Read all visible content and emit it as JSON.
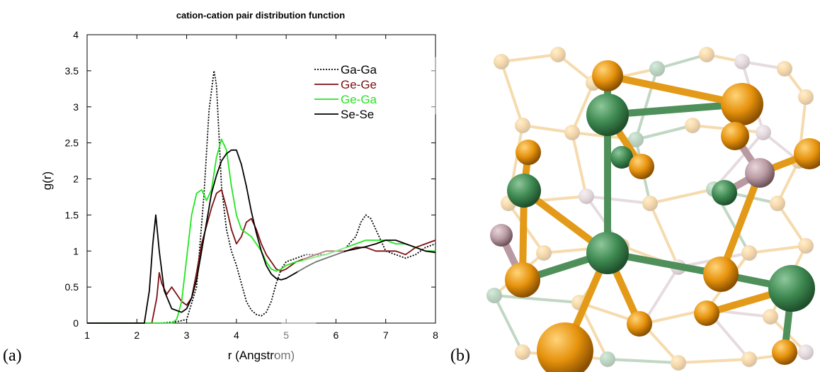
{
  "chart_data": {
    "type": "line",
    "title": "cation-cation pair distribution function",
    "xlabel": "r (Angstrom)",
    "ylabel": "g(r)",
    "xlim": [
      1,
      8
    ],
    "ylim": [
      0,
      4
    ],
    "xticks": [
      1,
      2,
      3,
      4,
      5,
      6,
      7,
      8
    ],
    "yticks": [
      0,
      0.5,
      1,
      1.5,
      2,
      2.5,
      3,
      3.5,
      4
    ],
    "ytick_labels": [
      "0",
      "0.5",
      "1",
      "1.5",
      "2",
      "2.5",
      "3",
      "3.5",
      "4"
    ],
    "grid": false,
    "legend_position": "top-right",
    "series": [
      {
        "name": "Ga-Ga",
        "color": "#000000",
        "style": "dotted",
        "x": [
          1.0,
          2.5,
          2.8,
          3.0,
          3.2,
          3.35,
          3.45,
          3.55,
          3.6,
          3.65,
          3.7,
          3.8,
          3.9,
          4.0,
          4.1,
          4.2,
          4.3,
          4.4,
          4.5,
          4.6,
          4.7,
          4.8,
          4.9,
          5.0,
          5.2,
          5.4,
          5.6,
          5.8,
          6.0,
          6.2,
          6.4,
          6.5,
          6.6,
          6.7,
          6.8,
          6.9,
          7.0,
          7.2,
          7.4,
          7.6,
          7.8,
          8.0
        ],
        "y": [
          0.0,
          0.0,
          0.02,
          0.05,
          0.5,
          1.8,
          2.95,
          3.5,
          3.3,
          2.6,
          1.9,
          1.3,
          1.0,
          0.8,
          0.55,
          0.3,
          0.18,
          0.12,
          0.1,
          0.15,
          0.3,
          0.55,
          0.75,
          0.85,
          0.9,
          0.95,
          0.95,
          0.95,
          1.0,
          1.05,
          1.2,
          1.4,
          1.5,
          1.45,
          1.3,
          1.15,
          1.0,
          0.95,
          0.9,
          0.95,
          1.05,
          1.1
        ]
      },
      {
        "name": "Ge-Ge",
        "color": "#7b0f12",
        "style": "solid",
        "x": [
          1.0,
          2.3,
          2.4,
          2.45,
          2.5,
          2.6,
          2.7,
          2.8,
          2.9,
          3.0,
          3.1,
          3.2,
          3.3,
          3.4,
          3.5,
          3.6,
          3.7,
          3.8,
          3.9,
          4.0,
          4.1,
          4.2,
          4.3,
          4.4,
          4.5,
          4.6,
          4.7,
          4.8,
          4.9,
          5.0,
          5.2,
          5.4,
          5.6,
          5.8,
          6.0,
          6.2,
          6.4,
          6.6,
          6.8,
          7.0,
          7.2,
          7.4,
          7.6,
          7.8,
          8.0
        ],
        "y": [
          0.0,
          0.0,
          0.35,
          0.7,
          0.55,
          0.4,
          0.5,
          0.4,
          0.3,
          0.25,
          0.35,
          0.7,
          1.1,
          1.35,
          1.6,
          1.8,
          1.85,
          1.6,
          1.3,
          1.1,
          1.2,
          1.4,
          1.45,
          1.3,
          1.1,
          0.95,
          0.85,
          0.75,
          0.72,
          0.75,
          0.85,
          0.9,
          0.95,
          1.0,
          1.0,
          1.0,
          1.05,
          1.05,
          1.0,
          1.0,
          1.0,
          0.95,
          1.05,
          1.1,
          1.15
        ]
      },
      {
        "name": "Ge-Ga",
        "color": "#22e61e",
        "style": "solid",
        "x": [
          1.0,
          2.7,
          2.8,
          2.9,
          3.0,
          3.1,
          3.2,
          3.3,
          3.4,
          3.5,
          3.6,
          3.7,
          3.8,
          3.9,
          4.0,
          4.1,
          4.2,
          4.3,
          4.4,
          4.5,
          4.6,
          4.7,
          4.8,
          4.9,
          5.0,
          5.2,
          5.4,
          5.6,
          5.8,
          6.0,
          6.2,
          6.4,
          6.6,
          6.8,
          7.0,
          7.2,
          7.4,
          7.6,
          7.8,
          8.0
        ],
        "y": [
          0.0,
          0.0,
          0.05,
          0.3,
          0.9,
          1.5,
          1.8,
          1.85,
          1.7,
          1.85,
          2.3,
          2.55,
          2.4,
          1.9,
          1.5,
          1.3,
          1.25,
          1.2,
          1.1,
          1.0,
          0.85,
          0.75,
          0.72,
          0.75,
          0.8,
          0.85,
          0.88,
          0.92,
          0.95,
          1.0,
          1.05,
          1.1,
          1.15,
          1.15,
          1.15,
          1.1,
          1.1,
          1.05,
          1.0,
          1.0
        ]
      },
      {
        "name": "Se-Se",
        "color": "#000000",
        "style": "solid",
        "x": [
          1.0,
          2.15,
          2.25,
          2.32,
          2.38,
          2.45,
          2.55,
          2.7,
          2.9,
          3.0,
          3.1,
          3.2,
          3.3,
          3.4,
          3.5,
          3.6,
          3.7,
          3.8,
          3.9,
          4.0,
          4.1,
          4.2,
          4.3,
          4.4,
          4.5,
          4.6,
          4.7,
          4.8,
          4.9,
          5.0,
          5.2,
          5.4,
          5.6,
          5.8,
          6.0,
          6.2,
          6.4,
          6.6,
          6.8,
          7.0,
          7.2,
          7.4,
          7.6,
          7.8,
          8.0
        ],
        "y": [
          0.0,
          0.0,
          0.45,
          1.1,
          1.5,
          1.0,
          0.45,
          0.2,
          0.15,
          0.2,
          0.35,
          0.6,
          1.0,
          1.4,
          1.8,
          2.05,
          2.25,
          2.35,
          2.4,
          2.4,
          2.2,
          1.9,
          1.55,
          1.25,
          1.0,
          0.8,
          0.68,
          0.62,
          0.6,
          0.62,
          0.7,
          0.78,
          0.85,
          0.9,
          0.95,
          1.0,
          1.03,
          1.06,
          1.1,
          1.15,
          1.15,
          1.1,
          1.05,
          1.0,
          0.98
        ]
      }
    ]
  },
  "panels": {
    "a_label": "(a)",
    "b_label": "(b)"
  },
  "colors": {
    "atom_green": "#3f8a52",
    "atom_orange": "#e6920c",
    "atom_pink": "#b99aa3",
    "bond_green": "#4f8f5a",
    "bond_orange": "#e39a18"
  }
}
